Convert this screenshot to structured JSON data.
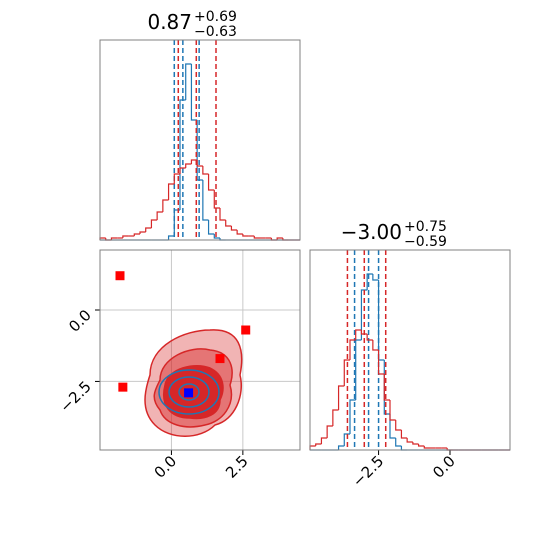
{
  "chart_data": {
    "type": "corner",
    "panels": [
      {
        "kind": "hist",
        "title": "0.87",
        "title_upper": "+0.69",
        "title_lower": "−0.63",
        "xlim": [
          -2.5,
          4.5
        ],
        "ylim": [
          0,
          100
        ],
        "bins": [
          -2.5,
          -2.3,
          -2.1,
          -1.9,
          -1.7,
          -1.5,
          -1.3,
          -1.1,
          -0.9,
          -0.7,
          -0.5,
          -0.3,
          -0.1,
          0.1,
          0.3,
          0.5,
          0.7,
          0.9,
          1.1,
          1.3,
          1.5,
          1.7,
          1.9,
          2.1,
          2.3,
          2.5,
          2.7,
          2.9,
          3.1,
          3.3,
          3.5,
          3.7,
          3.9,
          4.1,
          4.3,
          4.5
        ],
        "series": [
          {
            "color": "#1f77b4",
            "values": [
              0,
              0,
              0,
              0,
              0,
              0,
              0,
              0,
              0,
              0,
              0,
              0,
              2,
              15,
              70,
              88,
              60,
              30,
              10,
              3,
              1,
              0,
              0,
              0,
              0,
              0,
              0,
              0,
              0,
              0,
              0,
              0,
              0,
              0,
              0
            ],
            "quantiles": [
              0.1,
              0.4,
              0.97
            ]
          },
          {
            "color": "#d62728",
            "values": [
              1,
              0,
              1,
              1,
              2,
              2,
              3,
              4,
              6,
              10,
              14,
              20,
              28,
              33,
              36,
              38,
              40,
              37,
              33,
              25,
              16,
              10,
              7,
              5,
              3,
              2,
              2,
              1,
              1,
              1,
              0,
              1,
              0,
              0,
              0
            ],
            "quantiles": [
              0.24,
              0.87,
              1.56
            ]
          }
        ]
      },
      {
        "kind": "hist",
        "title": "−3.00",
        "title_upper": "+0.75",
        "title_lower": "−0.59",
        "xlim": [
          -4.9,
          2.1
        ],
        "ylim": [
          0,
          100
        ],
        "xticks": [
          {
            "value": -2.5,
            "label": "−2.5"
          },
          {
            "value": 0,
            "label": "0.0"
          }
        ],
        "bins": [
          -4.9,
          -4.7,
          -4.5,
          -4.3,
          -4.1,
          -3.9,
          -3.7,
          -3.5,
          -3.3,
          -3.1,
          -2.9,
          -2.7,
          -2.5,
          -2.3,
          -2.1,
          -1.9,
          -1.7,
          -1.5,
          -1.3,
          -1.1,
          -0.9,
          -0.7,
          -0.5,
          -0.3,
          -0.1,
          0.1,
          0.3,
          0.5,
          0.7,
          0.9,
          1.1,
          1.3,
          1.5,
          1.7,
          1.9,
          2.1
        ],
        "series": [
          {
            "color": "#1f77b4",
            "values": [
              0,
              0,
              0,
              0,
              0,
              2,
              8,
              25,
              55,
              80,
              88,
              85,
              45,
              18,
              6,
              2,
              0,
              0,
              0,
              0,
              0,
              0,
              0,
              0,
              0,
              0,
              0,
              0,
              0,
              0,
              0,
              0,
              0,
              0,
              0
            ],
            "quantiles": [
              -3.34,
              -2.85,
              -2.5
            ]
          },
          {
            "color": "#d62728",
            "values": [
              2,
              3,
              6,
              12,
              20,
              32,
              45,
              55,
              60,
              58,
              55,
              50,
              38,
              25,
              15,
              10,
              6,
              4,
              3,
              2,
              1,
              1,
              1,
              1,
              0,
              0,
              0,
              0,
              0,
              0,
              0,
              0,
              0,
              0,
              0
            ],
            "quantiles": [
              -3.59,
              -3.0,
              -2.25
            ]
          }
        ]
      },
      {
        "kind": "scatter2d",
        "xlim": [
          -2.5,
          4.5
        ],
        "ylim": [
          -4.9,
          2.1
        ],
        "grid": true,
        "xticks": [
          {
            "value": 0,
            "label": "0.0"
          },
          2.5
        ],
        "yticks": [
          {
            "value": 0,
            "label": "0.0"
          },
          {
            "value": -2.5,
            "label": "−2.5"
          }
        ],
        "series": [
          {
            "color": "#ff0000",
            "x": [
              -1.8,
              -1.7,
              2.6,
              1.7
            ],
            "values": [
              1.2,
              -2.7,
              -0.7,
              -1.7
            ]
          },
          {
            "color": "#0000ff",
            "x": [
              0.6
            ],
            "values": [
              -2.9
            ]
          }
        ]
      }
    ]
  }
}
